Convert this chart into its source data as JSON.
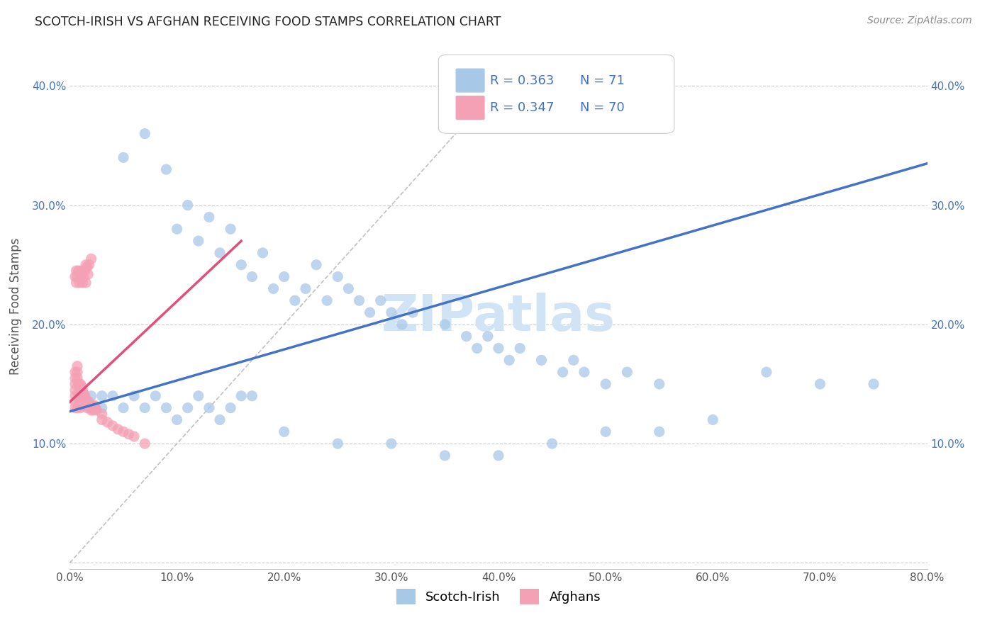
{
  "title": "SCOTCH-IRISH VS AFGHAN RECEIVING FOOD STAMPS CORRELATION CHART",
  "source": "Source: ZipAtlas.com",
  "ylabel": "Receiving Food Stamps",
  "xlim": [
    0.0,
    0.8
  ],
  "ylim": [
    -0.005,
    0.435
  ],
  "xticks": [
    0.0,
    0.1,
    0.2,
    0.3,
    0.4,
    0.5,
    0.6,
    0.7,
    0.8
  ],
  "yticks": [
    0.0,
    0.1,
    0.2,
    0.3,
    0.4
  ],
  "ytick_labels": [
    "",
    "10.0%",
    "20.0%",
    "30.0%",
    "40.0%"
  ],
  "xtick_labels": [
    "0.0%",
    "10.0%",
    "20.0%",
    "30.0%",
    "40.0%",
    "50.0%",
    "60.0%",
    "70.0%",
    "80.0%"
  ],
  "scotch_irish_R": 0.363,
  "scotch_irish_N": 71,
  "afghan_R": 0.347,
  "afghan_N": 70,
  "scotch_irish_color": "#A8C8E8",
  "afghan_color": "#F4A0B5",
  "scotch_irish_line_color": "#4472C4",
  "afghan_line_color": "#E0507A",
  "watermark": "ZIPatlas",
  "watermark_color": "#D0E4F5",
  "background_color": "#FFFFFF",
  "grid_color": "#CCCCCC",
  "scotch_irish_x": [
    0.05,
    0.07,
    0.09,
    0.1,
    0.11,
    0.12,
    0.13,
    0.14,
    0.15,
    0.16,
    0.17,
    0.18,
    0.19,
    0.2,
    0.21,
    0.22,
    0.23,
    0.24,
    0.25,
    0.26,
    0.27,
    0.28,
    0.29,
    0.3,
    0.31,
    0.32,
    0.35,
    0.37,
    0.38,
    0.39,
    0.4,
    0.41,
    0.42,
    0.44,
    0.46,
    0.47,
    0.48,
    0.5,
    0.52,
    0.55,
    0.65,
    0.7,
    0.01,
    0.02,
    0.02,
    0.03,
    0.03,
    0.04,
    0.05,
    0.06,
    0.07,
    0.08,
    0.09,
    0.1,
    0.11,
    0.12,
    0.13,
    0.14,
    0.15,
    0.16,
    0.17,
    0.2,
    0.25,
    0.3,
    0.35,
    0.4,
    0.45,
    0.5,
    0.55,
    0.6,
    0.75
  ],
  "scotch_irish_y": [
    0.34,
    0.36,
    0.33,
    0.28,
    0.3,
    0.27,
    0.29,
    0.26,
    0.28,
    0.25,
    0.24,
    0.26,
    0.23,
    0.24,
    0.22,
    0.23,
    0.25,
    0.22,
    0.24,
    0.23,
    0.22,
    0.21,
    0.22,
    0.21,
    0.2,
    0.21,
    0.2,
    0.19,
    0.18,
    0.19,
    0.18,
    0.17,
    0.18,
    0.17,
    0.16,
    0.17,
    0.16,
    0.15,
    0.16,
    0.15,
    0.16,
    0.15,
    0.14,
    0.14,
    0.13,
    0.14,
    0.13,
    0.14,
    0.13,
    0.14,
    0.13,
    0.14,
    0.13,
    0.12,
    0.13,
    0.14,
    0.13,
    0.12,
    0.13,
    0.14,
    0.14,
    0.11,
    0.1,
    0.1,
    0.09,
    0.09,
    0.1,
    0.11,
    0.11,
    0.12,
    0.15
  ],
  "afghan_x": [
    0.005,
    0.005,
    0.005,
    0.005,
    0.005,
    0.005,
    0.005,
    0.007,
    0.007,
    0.007,
    0.007,
    0.008,
    0.008,
    0.009,
    0.009,
    0.01,
    0.01,
    0.01,
    0.01,
    0.01,
    0.011,
    0.011,
    0.011,
    0.012,
    0.012,
    0.012,
    0.013,
    0.013,
    0.014,
    0.014,
    0.015,
    0.015,
    0.016,
    0.016,
    0.017,
    0.018,
    0.019,
    0.02,
    0.02,
    0.021,
    0.022,
    0.023,
    0.024,
    0.025,
    0.03,
    0.03,
    0.035,
    0.04,
    0.045,
    0.05,
    0.055,
    0.06,
    0.07,
    0.005,
    0.006,
    0.006,
    0.007,
    0.008,
    0.009,
    0.01,
    0.011,
    0.012,
    0.013,
    0.014,
    0.015,
    0.015,
    0.016,
    0.017,
    0.018,
    0.02
  ],
  "afghan_y": [
    0.135,
    0.14,
    0.145,
    0.15,
    0.155,
    0.16,
    0.13,
    0.155,
    0.16,
    0.165,
    0.13,
    0.15,
    0.14,
    0.145,
    0.135,
    0.145,
    0.15,
    0.135,
    0.14,
    0.13,
    0.148,
    0.138,
    0.132,
    0.145,
    0.138,
    0.132,
    0.142,
    0.135,
    0.14,
    0.133,
    0.138,
    0.132,
    0.135,
    0.13,
    0.132,
    0.135,
    0.13,
    0.132,
    0.128,
    0.13,
    0.128,
    0.132,
    0.13,
    0.128,
    0.125,
    0.12,
    0.118,
    0.115,
    0.112,
    0.11,
    0.108,
    0.106,
    0.1,
    0.24,
    0.245,
    0.235,
    0.24,
    0.245,
    0.235,
    0.24,
    0.245,
    0.235,
    0.24,
    0.245,
    0.235,
    0.25,
    0.248,
    0.242,
    0.25,
    0.255
  ]
}
